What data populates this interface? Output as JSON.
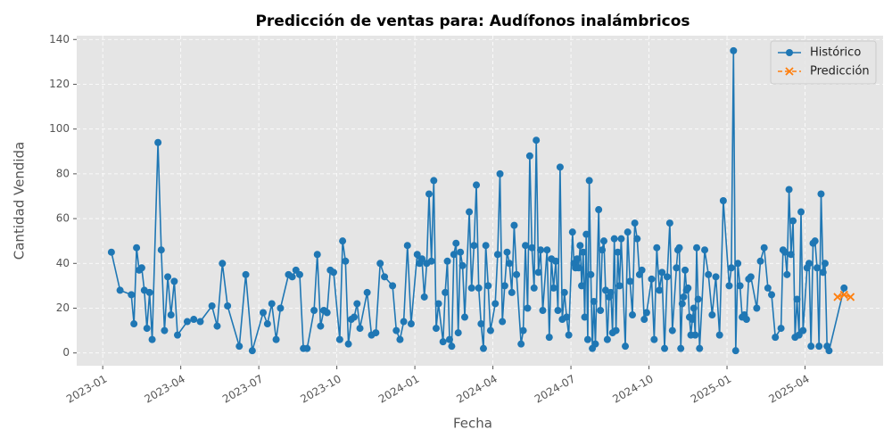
{
  "chart_data": {
    "type": "line",
    "title": "Predicción de ventas para: Audífonos inalámbricos",
    "xlabel": "Fecha",
    "ylabel": "Cantidad Vendida",
    "xlim": [
      "2022-12",
      "2025-07"
    ],
    "xticks": [
      "2023-01",
      "2023-04",
      "2023-07",
      "2023-10",
      "2024-01",
      "2024-04",
      "2024-07",
      "2024-10",
      "2025-01",
      "2025-04"
    ],
    "ylim": [
      -5.7,
      141.7
    ],
    "yticks": [
      0,
      20,
      40,
      60,
      80,
      100,
      120,
      140
    ],
    "grid": true,
    "legend": "upper right",
    "series": [
      {
        "name": "Histórico",
        "color": "#1f77b4",
        "marker": "o",
        "linestyle": "solid",
        "x": [
          "2023-01",
          "2023-01",
          "2023-02",
          "2023-02",
          "2023-02",
          "2023-02",
          "2023-02",
          "2023-02",
          "2023-02",
          "2023-02",
          "2023-02",
          "2023-03",
          "2023-03",
          "2023-03",
          "2023-03",
          "2023-03",
          "2023-03",
          "2023-03",
          "2023-04",
          "2023-04",
          "2023-04",
          "2023-05",
          "2023-05",
          "2023-05",
          "2023-05",
          "2023-06",
          "2023-06",
          "2023-06",
          "2023-07",
          "2023-07",
          "2023-07",
          "2023-07",
          "2023-07",
          "2023-08",
          "2023-08",
          "2023-08",
          "2023-08",
          "2023-08",
          "2023-08",
          "2023-09",
          "2023-09",
          "2023-09",
          "2023-09",
          "2023-09",
          "2023-09",
          "2023-09",
          "2023-10",
          "2023-10",
          "2023-10",
          "2023-10",
          "2023-10",
          "2023-10",
          "2023-10",
          "2023-10",
          "2023-11",
          "2023-11",
          "2023-11",
          "2023-11",
          "2023-11",
          "2023-12",
          "2023-12",
          "2023-12",
          "2023-12",
          "2023-12",
          "2023-12",
          "2024-01",
          "2024-01",
          "2024-01",
          "2024-01",
          "2024-01",
          "2024-01",
          "2024-01",
          "2024-01",
          "2024-01",
          "2024-01",
          "2024-02",
          "2024-02",
          "2024-02",
          "2024-02",
          "2024-02",
          "2024-02",
          "2024-02",
          "2024-02",
          "2024-02",
          "2024-02",
          "2024-02",
          "2024-03",
          "2024-03",
          "2024-03",
          "2024-03",
          "2024-03",
          "2024-03",
          "2024-03",
          "2024-03",
          "2024-03",
          "2024-03",
          "2024-04",
          "2024-04",
          "2024-04",
          "2024-04",
          "2024-04",
          "2024-04",
          "2024-04",
          "2024-04",
          "2024-04",
          "2024-04",
          "2024-05",
          "2024-05",
          "2024-05",
          "2024-05",
          "2024-05",
          "2024-05",
          "2024-05",
          "2024-05",
          "2024-05",
          "2024-05",
          "2024-05",
          "2024-06",
          "2024-06",
          "2024-06",
          "2024-06",
          "2024-06",
          "2024-06",
          "2024-06",
          "2024-06",
          "2024-06",
          "2024-06",
          "2024-06",
          "2024-07",
          "2024-07",
          "2024-07",
          "2024-07",
          "2024-07",
          "2024-07",
          "2024-07",
          "2024-07",
          "2024-07",
          "2024-07",
          "2024-07",
          "2024-07",
          "2024-07",
          "2024-07",
          "2024-07",
          "2024-07",
          "2024-08",
          "2024-08",
          "2024-08",
          "2024-08",
          "2024-08",
          "2024-08",
          "2024-08",
          "2024-08",
          "2024-08",
          "2024-08",
          "2024-08",
          "2024-08",
          "2024-08",
          "2024-08",
          "2024-09",
          "2024-09",
          "2024-09",
          "2024-09",
          "2024-09",
          "2024-09",
          "2024-09",
          "2024-09",
          "2024-09",
          "2024-09",
          "2024-10",
          "2024-10",
          "2024-10",
          "2024-10",
          "2024-10",
          "2024-10",
          "2024-10",
          "2024-10",
          "2024-10",
          "2024-11",
          "2024-11",
          "2024-11",
          "2024-11",
          "2024-11",
          "2024-11",
          "2024-11",
          "2024-11",
          "2024-11",
          "2024-11",
          "2024-11",
          "2024-11",
          "2024-11",
          "2024-11",
          "2024-11",
          "2024-11",
          "2024-11",
          "2024-12",
          "2024-12",
          "2024-12",
          "2024-12",
          "2024-12",
          "2024-12",
          "2025-01",
          "2025-01",
          "2025-01",
          "2025-01",
          "2025-01",
          "2025-01",
          "2025-01",
          "2025-01",
          "2025-01",
          "2025-01",
          "2025-01",
          "2025-02",
          "2025-02",
          "2025-02",
          "2025-02",
          "2025-02",
          "2025-02",
          "2025-03",
          "2025-03",
          "2025-03",
          "2025-03",
          "2025-03",
          "2025-03",
          "2025-03",
          "2025-03",
          "2025-03",
          "2025-03",
          "2025-03",
          "2025-03",
          "2025-04",
          "2025-04",
          "2025-04",
          "2025-04",
          "2025-04",
          "2025-04",
          "2025-04",
          "2025-04",
          "2025-04",
          "2025-04",
          "2025-04",
          "2025-04",
          "2025-05"
        ],
        "values": [
          45,
          28,
          26,
          13,
          47,
          37,
          38,
          28,
          11,
          27,
          6,
          94,
          46,
          10,
          34,
          17,
          32,
          8,
          14,
          15,
          14,
          21,
          12,
          40,
          21,
          3,
          35,
          1,
          18,
          13,
          22,
          6,
          20,
          35,
          34,
          37,
          35,
          2,
          2,
          19,
          44,
          12,
          19,
          18,
          37,
          36,
          6,
          50,
          41,
          4,
          15,
          16,
          22,
          11,
          27,
          8,
          9,
          40,
          34,
          30,
          10,
          6,
          14,
          48,
          13,
          44,
          40,
          42,
          25,
          40,
          71,
          41,
          77,
          11,
          22,
          5,
          27,
          41,
          6,
          3,
          44,
          49,
          9,
          45,
          39,
          16,
          63,
          29,
          48,
          75,
          29,
          13,
          2,
          48,
          30,
          10,
          22,
          44,
          80,
          14,
          30,
          45,
          40,
          27,
          57,
          35,
          4,
          10,
          48,
          20,
          88,
          47,
          29,
          95,
          36,
          46,
          19,
          46,
          7,
          42,
          29,
          41,
          19,
          83,
          15,
          27,
          16,
          8,
          54,
          40,
          38,
          42,
          38,
          48,
          30,
          45,
          16,
          53,
          6,
          77,
          35,
          2,
          23,
          4,
          64,
          19,
          46,
          50,
          28,
          6,
          25,
          27,
          9,
          51,
          10,
          45,
          30,
          51,
          3,
          54,
          32,
          17,
          58,
          51,
          35,
          37,
          15,
          18,
          33,
          6,
          47,
          28,
          36,
          2,
          34,
          58,
          10,
          38,
          46,
          47,
          2,
          22,
          25,
          37,
          28,
          29,
          16,
          8,
          15,
          20,
          8,
          47,
          24,
          2,
          46,
          35,
          17,
          34,
          8,
          68,
          30,
          38,
          135,
          1,
          40,
          30,
          16,
          17,
          15,
          33,
          34,
          20,
          41,
          47,
          29,
          26,
          7,
          11,
          46,
          45,
          35,
          73,
          44,
          59,
          7,
          24,
          8,
          63,
          10,
          38,
          40,
          3,
          49,
          50,
          38,
          3,
          71,
          36,
          40,
          3,
          1,
          29
        ]
      },
      {
        "name": "Predicción",
        "color": "#ff7f0e",
        "marker": "x",
        "linestyle": "dashed",
        "x": [
          "2025-05",
          "2025-05",
          "2025-05"
        ],
        "values": [
          25,
          26,
          25
        ]
      }
    ]
  }
}
